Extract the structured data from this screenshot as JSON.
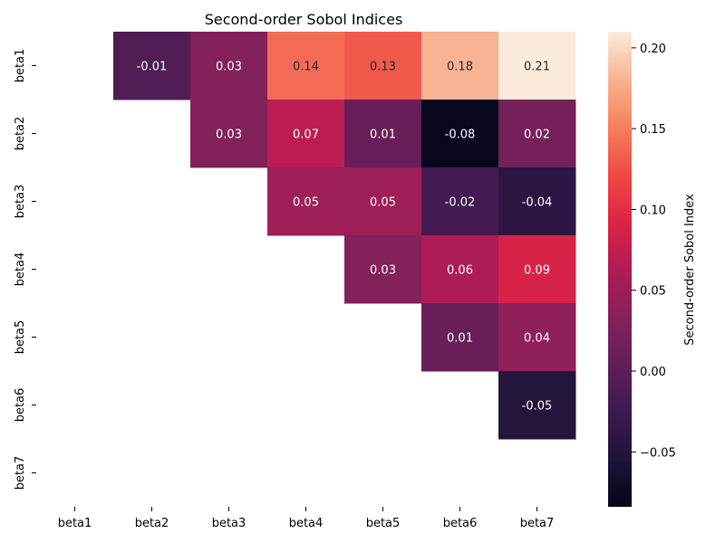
{
  "chart_data": {
    "type": "heatmap",
    "title": "Second-order Sobol Indices",
    "row_labels": [
      "beta1",
      "beta2",
      "beta3",
      "beta4",
      "beta5",
      "beta6",
      "beta7"
    ],
    "col_labels": [
      "beta1",
      "beta2",
      "beta3",
      "beta4",
      "beta5",
      "beta6",
      "beta7"
    ],
    "values": [
      [
        null,
        -0.01,
        0.03,
        0.14,
        0.13,
        0.18,
        0.21
      ],
      [
        null,
        null,
        0.03,
        0.07,
        0.01,
        -0.08,
        0.02
      ],
      [
        null,
        null,
        null,
        0.05,
        0.05,
        -0.02,
        -0.04
      ],
      [
        null,
        null,
        null,
        null,
        0.03,
        0.06,
        0.09
      ],
      [
        null,
        null,
        null,
        null,
        null,
        0.01,
        0.04
      ],
      [
        null,
        null,
        null,
        null,
        null,
        null,
        -0.05
      ],
      [
        null,
        null,
        null,
        null,
        null,
        null,
        null
      ]
    ],
    "mask": "lower-triangle-and-diagonal",
    "colorbar": {
      "label": "Second-order Sobol Index",
      "min": -0.084,
      "max": 0.21,
      "ticks": [
        -0.05,
        0.0,
        0.05,
        0.1,
        0.15,
        0.2
      ],
      "tick_labels": [
        "−0.05",
        "0.00",
        "0.05",
        "0.10",
        "0.15",
        "0.20"
      ],
      "colormap": "rocket",
      "position": "right"
    },
    "annotation_format": "2 decimals",
    "grid": false
  }
}
